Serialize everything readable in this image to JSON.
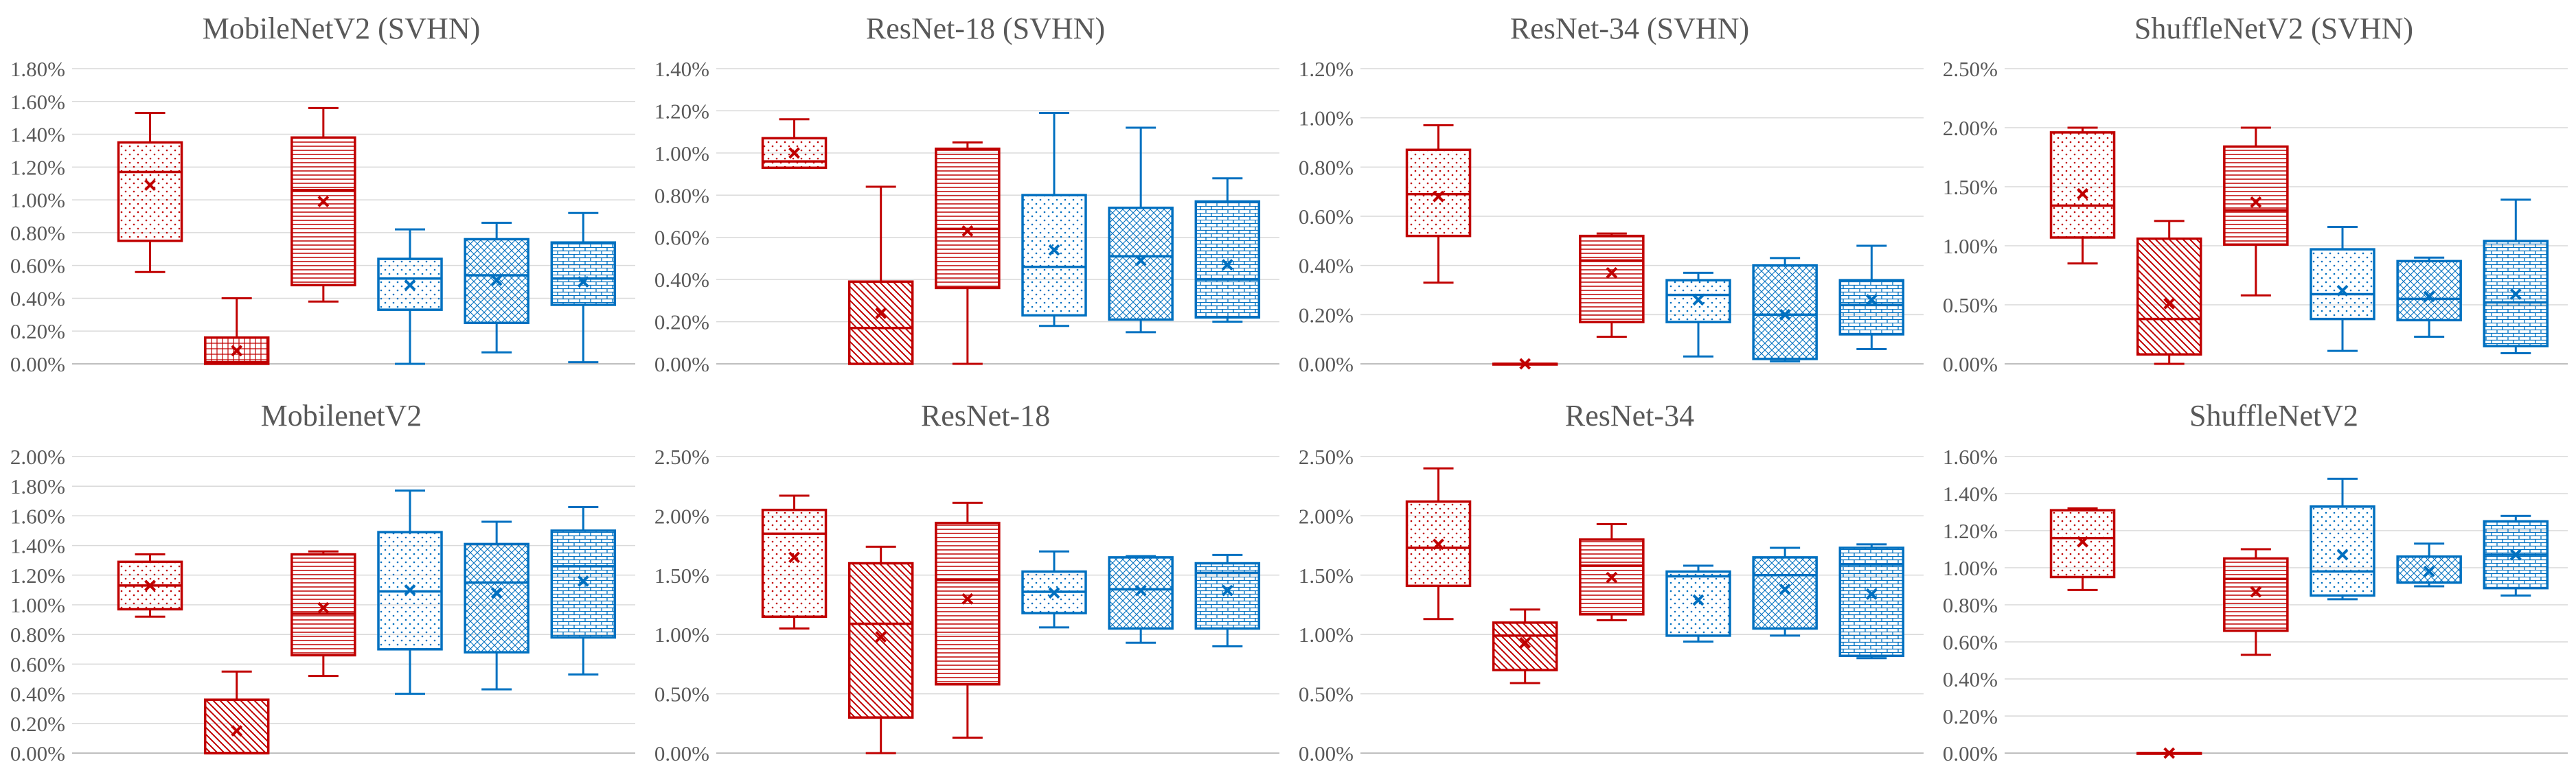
{
  "colors": {
    "red": "#c00000",
    "blue": "#0070c0",
    "grid": "#d9d9d9",
    "axis": "#bfbfbf",
    "text": "#595959"
  },
  "chart_data": [
    {
      "type": "box",
      "title": "MobileNetV2 (SVHN)",
      "yticks": [
        "0.00%",
        "0.20%",
        "0.40%",
        "0.60%",
        "0.80%",
        "1.00%",
        "1.20%",
        "1.40%",
        "1.60%",
        "1.80%"
      ],
      "ylim": [
        0,
        1.8
      ],
      "boxes": [
        {
          "min": 0.56,
          "q1": 0.75,
          "median": 1.17,
          "q3": 1.35,
          "max": 1.53,
          "mean": 1.09,
          "color": "red",
          "pattern": "dots"
        },
        {
          "min": 0.0,
          "q1": 0.0,
          "median": 0.01,
          "q3": 0.16,
          "max": 0.4,
          "mean": 0.08,
          "color": "red",
          "pattern": "grid"
        },
        {
          "min": 0.38,
          "q1": 0.48,
          "median": 1.06,
          "q3": 1.38,
          "max": 1.56,
          "mean": 0.99,
          "color": "red",
          "pattern": "hlines"
        },
        {
          "min": 0.0,
          "q1": 0.33,
          "median": 0.52,
          "q3": 0.64,
          "max": 0.82,
          "mean": 0.48,
          "color": "blue",
          "pattern": "dots"
        },
        {
          "min": 0.07,
          "q1": 0.25,
          "median": 0.54,
          "q3": 0.76,
          "max": 0.86,
          "mean": 0.51,
          "color": "blue",
          "pattern": "cross"
        },
        {
          "min": 0.01,
          "q1": 0.36,
          "median": 0.52,
          "q3": 0.74,
          "max": 0.92,
          "mean": 0.5,
          "color": "blue",
          "pattern": "brick"
        }
      ]
    },
    {
      "type": "box",
      "title": "ResNet-18 (SVHN)",
      "yticks": [
        "0.00%",
        "0.20%",
        "0.40%",
        "0.60%",
        "0.80%",
        "1.00%",
        "1.20%",
        "1.40%"
      ],
      "ylim": [
        0,
        1.4
      ],
      "boxes": [
        {
          "min": 0.93,
          "q1": 0.93,
          "median": 0.96,
          "q3": 1.07,
          "max": 1.16,
          "mean": 1.0,
          "color": "red",
          "pattern": "dots"
        },
        {
          "min": 0.0,
          "q1": 0.0,
          "median": 0.17,
          "q3": 0.39,
          "max": 0.84,
          "mean": 0.24,
          "color": "red",
          "pattern": "diag"
        },
        {
          "min": 0.0,
          "q1": 0.36,
          "median": 0.64,
          "q3": 1.02,
          "max": 1.05,
          "mean": 0.63,
          "color": "red",
          "pattern": "hlines"
        },
        {
          "min": 0.18,
          "q1": 0.23,
          "median": 0.46,
          "q3": 0.8,
          "max": 1.19,
          "mean": 0.54,
          "color": "blue",
          "pattern": "dots"
        },
        {
          "min": 0.15,
          "q1": 0.21,
          "median": 0.51,
          "q3": 0.74,
          "max": 1.12,
          "mean": 0.49,
          "color": "blue",
          "pattern": "cross"
        },
        {
          "min": 0.2,
          "q1": 0.22,
          "median": 0.4,
          "q3": 0.77,
          "max": 0.88,
          "mean": 0.47,
          "color": "blue",
          "pattern": "brick"
        }
      ]
    },
    {
      "type": "box",
      "title": "ResNet-34 (SVHN)",
      "yticks": [
        "0.00%",
        "0.20%",
        "0.40%",
        "0.60%",
        "0.80%",
        "1.00%",
        "1.20%"
      ],
      "ylim": [
        0,
        1.2
      ],
      "boxes": [
        {
          "min": 0.33,
          "q1": 0.52,
          "median": 0.69,
          "q3": 0.87,
          "max": 0.97,
          "mean": 0.68,
          "color": "red",
          "pattern": "dots"
        },
        {
          "min": 0.0,
          "q1": 0.0,
          "median": 0.0,
          "q3": 0.0,
          "max": 0.0,
          "mean": 0.0,
          "color": "red",
          "pattern": "none"
        },
        {
          "min": 0.11,
          "q1": 0.17,
          "median": 0.42,
          "q3": 0.52,
          "max": 0.53,
          "mean": 0.37,
          "color": "red",
          "pattern": "hlines"
        },
        {
          "min": 0.03,
          "q1": 0.17,
          "median": 0.28,
          "q3": 0.34,
          "max": 0.37,
          "mean": 0.26,
          "color": "blue",
          "pattern": "dots"
        },
        {
          "min": 0.01,
          "q1": 0.02,
          "median": 0.2,
          "q3": 0.4,
          "max": 0.43,
          "mean": 0.2,
          "color": "blue",
          "pattern": "cross"
        },
        {
          "min": 0.06,
          "q1": 0.12,
          "median": 0.24,
          "q3": 0.34,
          "max": 0.48,
          "mean": 0.26,
          "color": "blue",
          "pattern": "brick"
        }
      ]
    },
    {
      "type": "box",
      "title": "ShuffleNetV2 (SVHN)",
      "yticks": [
        "0.00%",
        "0.50%",
        "1.00%",
        "1.50%",
        "2.00%",
        "2.50%"
      ],
      "ylim": [
        0,
        2.5
      ],
      "boxes": [
        {
          "min": 0.85,
          "q1": 1.07,
          "median": 1.34,
          "q3": 1.96,
          "max": 2.0,
          "mean": 1.44,
          "color": "red",
          "pattern": "dots"
        },
        {
          "min": 0.0,
          "q1": 0.08,
          "median": 0.38,
          "q3": 1.06,
          "max": 1.21,
          "mean": 0.51,
          "color": "red",
          "pattern": "diag"
        },
        {
          "min": 0.58,
          "q1": 1.01,
          "median": 1.3,
          "q3": 1.84,
          "max": 2.0,
          "mean": 1.37,
          "color": "red",
          "pattern": "hlines"
        },
        {
          "min": 0.11,
          "q1": 0.38,
          "median": 0.59,
          "q3": 0.97,
          "max": 1.16,
          "mean": 0.62,
          "color": "blue",
          "pattern": "dots"
        },
        {
          "min": 0.23,
          "q1": 0.37,
          "median": 0.55,
          "q3": 0.87,
          "max": 0.9,
          "mean": 0.57,
          "color": "blue",
          "pattern": "cross"
        },
        {
          "min": 0.09,
          "q1": 0.15,
          "median": 0.52,
          "q3": 1.04,
          "max": 1.39,
          "mean": 0.59,
          "color": "blue",
          "pattern": "brick"
        }
      ]
    },
    {
      "type": "box",
      "title": "MobilenetV2",
      "yticks": [
        "0.00%",
        "0.20%",
        "0.40%",
        "0.60%",
        "0.80%",
        "1.00%",
        "1.20%",
        "1.40%",
        "1.60%",
        "1.80%",
        "2.00%"
      ],
      "ylim": [
        0,
        2.0
      ],
      "boxes": [
        {
          "min": 0.92,
          "q1": 0.97,
          "median": 1.13,
          "q3": 1.29,
          "max": 1.34,
          "mean": 1.13,
          "color": "red",
          "pattern": "dots"
        },
        {
          "min": 0.0,
          "q1": 0.0,
          "median": 0.0,
          "q3": 0.36,
          "max": 0.55,
          "mean": 0.15,
          "color": "red",
          "pattern": "diag"
        },
        {
          "min": 0.52,
          "q1": 0.66,
          "median": 0.94,
          "q3": 1.34,
          "max": 1.36,
          "mean": 0.98,
          "color": "red",
          "pattern": "hlines"
        },
        {
          "min": 0.4,
          "q1": 0.7,
          "median": 1.09,
          "q3": 1.49,
          "max": 1.77,
          "mean": 1.1,
          "color": "blue",
          "pattern": "dots"
        },
        {
          "min": 0.43,
          "q1": 0.68,
          "median": 1.15,
          "q3": 1.41,
          "max": 1.56,
          "mean": 1.08,
          "color": "blue",
          "pattern": "cross"
        },
        {
          "min": 0.53,
          "q1": 0.78,
          "median": 1.26,
          "q3": 1.5,
          "max": 1.66,
          "mean": 1.16,
          "color": "blue",
          "pattern": "brick"
        }
      ]
    },
    {
      "type": "box",
      "title": "ResNet-18",
      "yticks": [
        "0.00%",
        "0.50%",
        "1.00%",
        "1.50%",
        "2.00%",
        "2.50%"
      ],
      "ylim": [
        0,
        2.5
      ],
      "boxes": [
        {
          "min": 1.05,
          "q1": 1.15,
          "median": 1.85,
          "q3": 2.05,
          "max": 2.17,
          "mean": 1.65,
          "color": "red",
          "pattern": "dots"
        },
        {
          "min": 0.0,
          "q1": 0.3,
          "median": 1.09,
          "q3": 1.6,
          "max": 1.74,
          "mean": 0.98,
          "color": "red",
          "pattern": "diag"
        },
        {
          "min": 0.13,
          "q1": 0.58,
          "median": 1.46,
          "q3": 1.94,
          "max": 2.11,
          "mean": 1.3,
          "color": "red",
          "pattern": "hlines"
        },
        {
          "min": 1.06,
          "q1": 1.18,
          "median": 1.36,
          "q3": 1.53,
          "max": 1.7,
          "mean": 1.35,
          "color": "blue",
          "pattern": "dots"
        },
        {
          "min": 0.93,
          "q1": 1.05,
          "median": 1.38,
          "q3": 1.65,
          "max": 1.66,
          "mean": 1.37,
          "color": "blue",
          "pattern": "cross"
        },
        {
          "min": 0.9,
          "q1": 1.05,
          "median": 1.52,
          "q3": 1.6,
          "max": 1.67,
          "mean": 1.37,
          "color": "blue",
          "pattern": "brick"
        }
      ]
    },
    {
      "type": "box",
      "title": "ResNet-34",
      "yticks": [
        "0.00%",
        "0.50%",
        "1.00%",
        "1.50%",
        "2.00%",
        "2.50%"
      ],
      "ylim": [
        0,
        2.5
      ],
      "boxes": [
        {
          "min": 1.13,
          "q1": 1.41,
          "median": 1.73,
          "q3": 2.12,
          "max": 2.4,
          "mean": 1.76,
          "color": "red",
          "pattern": "dots"
        },
        {
          "min": 0.59,
          "q1": 0.7,
          "median": 0.99,
          "q3": 1.1,
          "max": 1.21,
          "mean": 0.93,
          "color": "red",
          "pattern": "diag"
        },
        {
          "min": 1.12,
          "q1": 1.17,
          "median": 1.58,
          "q3": 1.8,
          "max": 1.93,
          "mean": 1.48,
          "color": "red",
          "pattern": "hlines"
        },
        {
          "min": 0.94,
          "q1": 0.99,
          "median": 1.49,
          "q3": 1.53,
          "max": 1.58,
          "mean": 1.29,
          "color": "blue",
          "pattern": "dots"
        },
        {
          "min": 0.99,
          "q1": 1.05,
          "median": 1.5,
          "q3": 1.65,
          "max": 1.73,
          "mean": 1.38,
          "color": "blue",
          "pattern": "cross"
        },
        {
          "min": 0.8,
          "q1": 0.82,
          "median": 1.59,
          "q3": 1.73,
          "max": 1.76,
          "mean": 1.34,
          "color": "blue",
          "pattern": "brick"
        }
      ]
    },
    {
      "type": "box",
      "title": "ShuffleNetV2",
      "yticks": [
        "0.00%",
        "0.20%",
        "0.40%",
        "0.60%",
        "0.80%",
        "1.00%",
        "1.20%",
        "1.40%",
        "1.60%"
      ],
      "ylim": [
        0,
        1.6
      ],
      "boxes": [
        {
          "min": 0.88,
          "q1": 0.95,
          "median": 1.16,
          "q3": 1.31,
          "max": 1.32,
          "mean": 1.14,
          "color": "red",
          "pattern": "dots"
        },
        {
          "min": 0.0,
          "q1": 0.0,
          "median": 0.0,
          "q3": 0.0,
          "max": 0.0,
          "mean": 0.0,
          "color": "red",
          "pattern": "none"
        },
        {
          "min": 0.53,
          "q1": 0.66,
          "median": 0.94,
          "q3": 1.05,
          "max": 1.1,
          "mean": 0.87,
          "color": "red",
          "pattern": "hlines"
        },
        {
          "min": 0.83,
          "q1": 0.85,
          "median": 0.98,
          "q3": 1.33,
          "max": 1.48,
          "mean": 1.07,
          "color": "blue",
          "pattern": "dots"
        },
        {
          "min": 0.9,
          "q1": 0.92,
          "median": 0.92,
          "q3": 1.06,
          "max": 1.13,
          "mean": 0.98,
          "color": "blue",
          "pattern": "cross"
        },
        {
          "min": 0.85,
          "q1": 0.89,
          "median": 1.07,
          "q3": 1.25,
          "max": 1.28,
          "mean": 1.07,
          "color": "blue",
          "pattern": "brick"
        }
      ]
    }
  ]
}
